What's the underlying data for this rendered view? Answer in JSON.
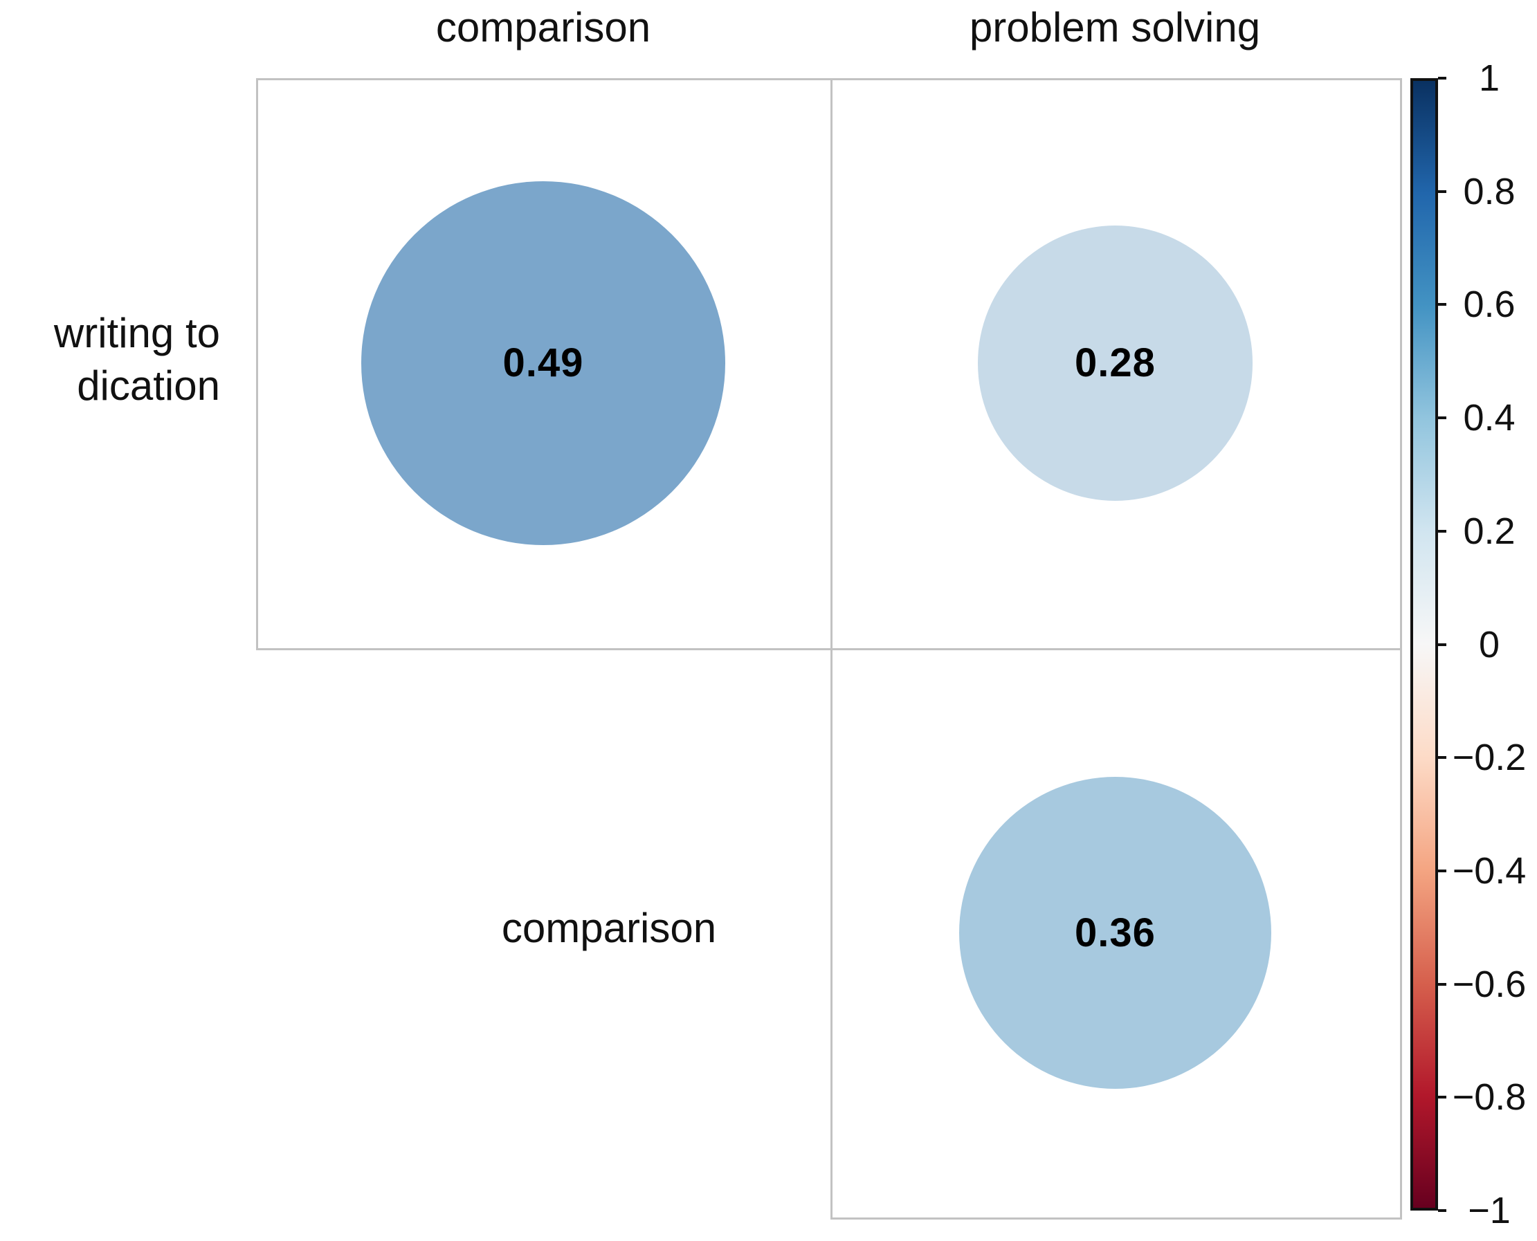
{
  "chart_data": {
    "type": "correlation-matrix",
    "title": "",
    "col_labels": [
      "comparison",
      "problem solving"
    ],
    "row_labels": [
      [
        "writing to",
        "dication"
      ],
      [
        "comparison"
      ]
    ],
    "cells": [
      {
        "row": 0,
        "col": 0,
        "value": 0.49,
        "label": "0.49",
        "color": "#7BA6CB"
      },
      {
        "row": 0,
        "col": 1,
        "value": 0.28,
        "label": "0.28",
        "color": "#C7DAE8"
      },
      {
        "row": 1,
        "col": 1,
        "value": 0.36,
        "label": "0.36",
        "color": "#A7C9DF"
      }
    ],
    "value_range": [
      -1,
      1
    ],
    "legend_position": "right",
    "grid_on": true,
    "colorbar": {
      "ticks": [
        {
          "label": "1",
          "value": 1
        },
        {
          "label": "0.8",
          "value": 0.8
        },
        {
          "label": "0.6",
          "value": 0.6
        },
        {
          "label": "0.4",
          "value": 0.4
        },
        {
          "label": "0.2",
          "value": 0.2
        },
        {
          "label": "0",
          "value": 0
        },
        {
          "label": "−0.2",
          "value": -0.2
        },
        {
          "label": "−0.4",
          "value": -0.4
        },
        {
          "label": "−0.6",
          "value": -0.6
        },
        {
          "label": "−0.8",
          "value": -0.8
        },
        {
          "label": "−1",
          "value": -1
        }
      ],
      "gradient_stops": [
        {
          "value": 1,
          "color": "#0A3161"
        },
        {
          "value": 0.8,
          "color": "#2166AC"
        },
        {
          "value": 0.6,
          "color": "#4393C3"
        },
        {
          "value": 0.4,
          "color": "#92C5DE"
        },
        {
          "value": 0.2,
          "color": "#D1E5F0"
        },
        {
          "value": 0,
          "color": "#F7F7F7"
        },
        {
          "value": -0.2,
          "color": "#FDDBC7"
        },
        {
          "value": -0.4,
          "color": "#F4A582"
        },
        {
          "value": -0.6,
          "color": "#D6604D"
        },
        {
          "value": -0.8,
          "color": "#B2182B"
        },
        {
          "value": -1,
          "color": "#67001F"
        }
      ]
    }
  }
}
